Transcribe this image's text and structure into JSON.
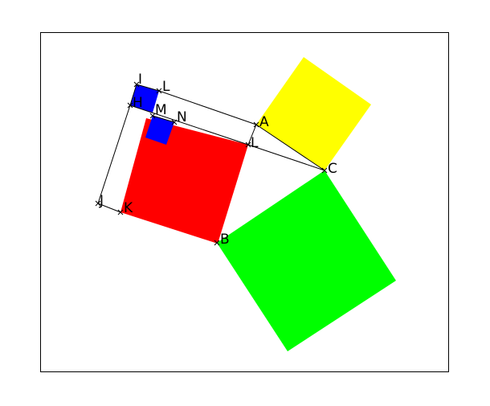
{
  "colors": {
    "frame": "#000000",
    "red_square": "#ff0000",
    "yellow_square": "#ffff00",
    "green_square": "#00ff00",
    "blue_square": "#0000ff",
    "lines": "#000000"
  },
  "points": [
    {
      "id": "I",
      "label": "I"
    },
    {
      "id": "L1",
      "label": "L"
    },
    {
      "id": "H",
      "label": "H"
    },
    {
      "id": "M",
      "label": "M"
    },
    {
      "id": "N",
      "label": "N"
    },
    {
      "id": "A",
      "label": "A"
    },
    {
      "id": "L2",
      "label": "L"
    },
    {
      "id": "C",
      "label": "C"
    },
    {
      "id": "J",
      "label": "J"
    },
    {
      "id": "K",
      "label": "K"
    },
    {
      "id": "B",
      "label": "B"
    }
  ]
}
